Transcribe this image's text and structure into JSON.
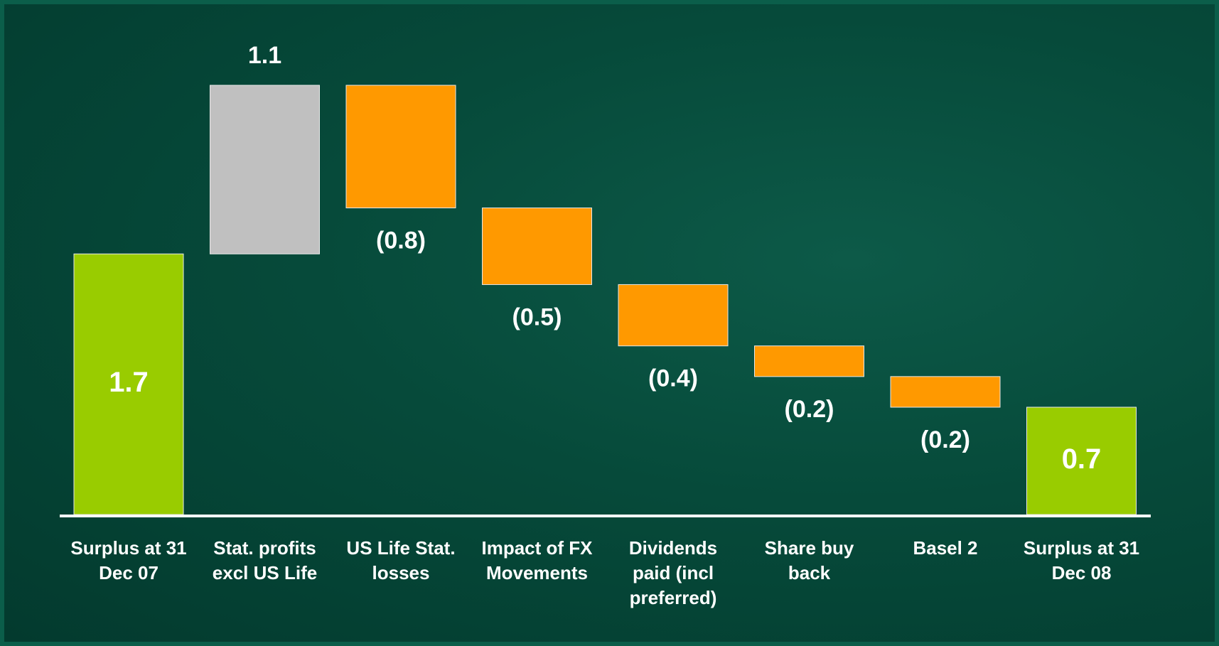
{
  "chart_data": {
    "type": "waterfall",
    "categories": [
      "Surplus at 31 Dec 07",
      "Stat. profits excl US Life",
      "US Life Stat. losses",
      "Impact of FX Movements",
      "Dividends paid (incl preferred)",
      "Share buy back",
      "Basel 2",
      "Surplus at 31 Dec 08"
    ],
    "values": [
      1.7,
      1.1,
      -0.8,
      -0.5,
      -0.4,
      -0.2,
      -0.2,
      0.7
    ],
    "value_labels": [
      "1.7",
      "1.1",
      "(0.8)",
      "(0.5)",
      "(0.4)",
      "(0.2)",
      "(0.2)",
      "0.7"
    ],
    "measure": [
      "total",
      "relative",
      "relative",
      "relative",
      "relative",
      "relative",
      "relative",
      "total"
    ],
    "colors": [
      "#99cc00",
      "#c0c0c0",
      "#ff9900",
      "#ff9900",
      "#ff9900",
      "#ff9900",
      "#ff9900",
      "#99cc00"
    ]
  }
}
